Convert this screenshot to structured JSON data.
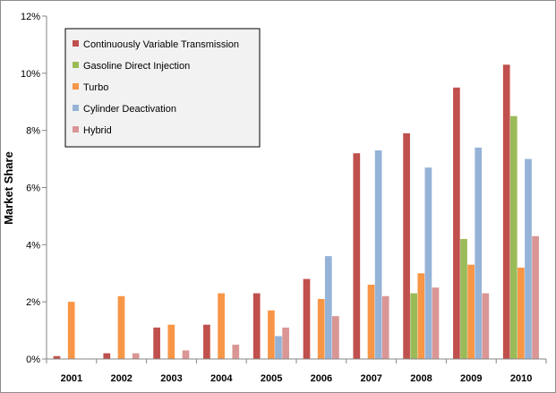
{
  "chart_data": {
    "type": "bar",
    "title": "",
    "xlabel": "",
    "ylabel": "Market Share",
    "ylim": [
      0,
      0.12
    ],
    "yticks": [
      "0%",
      "2%",
      "4%",
      "6%",
      "8%",
      "10%",
      "12%"
    ],
    "grid": false,
    "legend_position": "top-left",
    "categories": [
      "2001",
      "2002",
      "2003",
      "2004",
      "2005",
      "2006",
      "2007",
      "2008",
      "2009",
      "2010"
    ],
    "series": [
      {
        "name": "Continuously Variable Transmission",
        "color": "#c0504d",
        "values": [
          0.001,
          0.002,
          0.011,
          0.012,
          0.023,
          0.028,
          0.072,
          0.079,
          0.095,
          0.103
        ]
      },
      {
        "name": "Gasoline Direct Injection",
        "color": "#9bbb59",
        "values": [
          0,
          0,
          0,
          0,
          0,
          0,
          0,
          0.023,
          0.042,
          0.085
        ]
      },
      {
        "name": "Turbo",
        "color": "#f79646",
        "values": [
          0.02,
          0.022,
          0.012,
          0.023,
          0.017,
          0.021,
          0.026,
          0.03,
          0.033,
          0.032
        ]
      },
      {
        "name": "Cylinder Deactivation",
        "color": "#95b3d7",
        "values": [
          0,
          0,
          0,
          0,
          0.008,
          0.036,
          0.073,
          0.067,
          0.074,
          0.07
        ]
      },
      {
        "name": "Hybrid",
        "color": "#d99694",
        "values": [
          0,
          0.002,
          0.003,
          0.005,
          0.011,
          0.015,
          0.022,
          0.025,
          0.023,
          0.043
        ]
      }
    ]
  }
}
